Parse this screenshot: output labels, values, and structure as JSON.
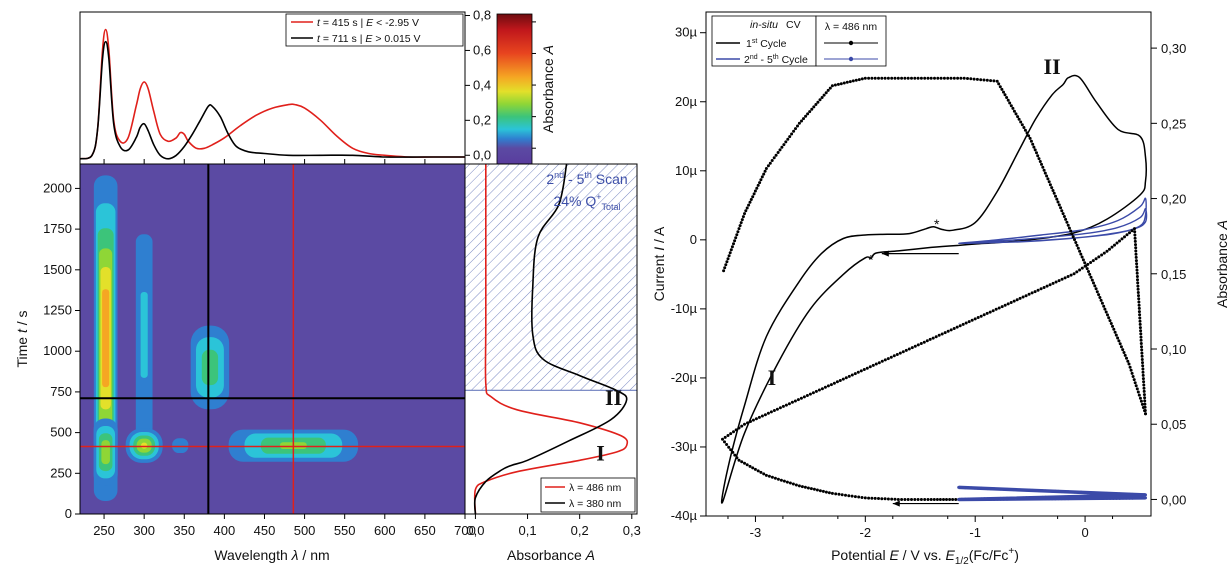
{
  "colors": {
    "red": "#e0201b",
    "black": "#000000",
    "blue": "#3b4aa8",
    "map_background": "#5b4aa3",
    "hatch": "#5a6db5"
  },
  "chart_data": [
    {
      "id": "top_spectra",
      "type": "line",
      "ylim": [
        -0.05,
        0.82
      ],
      "yticks": [
        "0,0",
        "0,2",
        "0,4",
        "0,6",
        "0,8"
      ],
      "legend": {
        "placement": "top-right",
        "entries": [
          {
            "color": "red",
            "t": "415",
            "E": "< -2.95 V"
          },
          {
            "color": "black",
            "t": "711",
            "E": "> 0.015 V"
          }
        ]
      },
      "series": [
        {
          "name_prefix": "t = 415 s | E < -2.95 V",
          "color": "red",
          "x": [
            220,
            235,
            242,
            248,
            252,
            256,
            262,
            270,
            280,
            290,
            295,
            300,
            305,
            312,
            320,
            330,
            340,
            345,
            350,
            355,
            365,
            375,
            385,
            400,
            420,
            440,
            460,
            480,
            488,
            500,
            520,
            540,
            560,
            580,
            600,
            630,
            660,
            700
          ],
          "y": [
            -0.02,
            0.0,
            0.15,
            0.6,
            0.72,
            0.6,
            0.2,
            0.08,
            0.1,
            0.28,
            0.38,
            0.42,
            0.38,
            0.25,
            0.12,
            0.08,
            0.1,
            0.13,
            0.12,
            0.08,
            0.04,
            0.04,
            0.06,
            0.1,
            0.17,
            0.23,
            0.27,
            0.29,
            0.29,
            0.27,
            0.2,
            0.11,
            0.04,
            0.01,
            0.0,
            -0.01,
            -0.01,
            -0.01
          ]
        },
        {
          "name_prefix": "t = 711 s | E > 0.015 V",
          "color": "black",
          "x": [
            220,
            235,
            242,
            248,
            252,
            256,
            262,
            270,
            280,
            290,
            295,
            300,
            305,
            312,
            320,
            330,
            340,
            350,
            360,
            370,
            380,
            385,
            395,
            405,
            415,
            430,
            450,
            480,
            520,
            560,
            600,
            650,
            700
          ],
          "y": [
            -0.02,
            0.0,
            0.15,
            0.55,
            0.65,
            0.55,
            0.18,
            0.05,
            0.03,
            0.1,
            0.16,
            0.18,
            0.14,
            0.06,
            0.0,
            -0.02,
            0.0,
            0.05,
            0.12,
            0.2,
            0.28,
            0.28,
            0.22,
            0.12,
            0.05,
            0.02,
            0.01,
            0.0,
            0.0,
            0.0,
            -0.01,
            -0.01,
            -0.01
          ]
        }
      ]
    },
    {
      "id": "colorbar",
      "type": "heatmap",
      "label": "Absorbance A",
      "range": [
        -0.1,
        0.85
      ],
      "ticks": [
        "0,0",
        "0,2",
        "0,4",
        "0,6",
        "0,8"
      ],
      "tick_values": [
        0.0,
        0.2,
        0.4,
        0.6,
        0.8
      ],
      "stops": [
        {
          "v": -0.1,
          "c": "#5a3d9e"
        },
        {
          "v": 0.0,
          "c": "#5b4aa3"
        },
        {
          "v": 0.06,
          "c": "#2f7fd0"
        },
        {
          "v": 0.12,
          "c": "#2bc4d8"
        },
        {
          "v": 0.2,
          "c": "#3cc47a"
        },
        {
          "v": 0.28,
          "c": "#8fd636"
        },
        {
          "v": 0.36,
          "c": "#e3e02a"
        },
        {
          "v": 0.45,
          "c": "#f5a623"
        },
        {
          "v": 0.6,
          "c": "#e8451f"
        },
        {
          "v": 0.75,
          "c": "#c0171c"
        },
        {
          "v": 0.85,
          "c": "#6e0c10"
        }
      ]
    },
    {
      "id": "heatmap",
      "type": "heatmap",
      "xlabel": "Wavelength λ / nm",
      "ylabel": "Time t / s",
      "xlim": [
        220,
        700
      ],
      "ylim": [
        0,
        2150
      ],
      "xticks": [
        250,
        300,
        350,
        400,
        450,
        500,
        550,
        600,
        650,
        700
      ],
      "yticks": [
        0,
        250,
        500,
        750,
        1000,
        1250,
        1500,
        1750,
        2000
      ],
      "cursor_lines": [
        {
          "axis": "x",
          "value": 486,
          "color": "red"
        },
        {
          "axis": "y",
          "value": 415,
          "color": "red"
        },
        {
          "axis": "x",
          "value": 380,
          "color": "black"
        },
        {
          "axis": "y",
          "value": 711,
          "color": "black"
        }
      ],
      "blobs": [
        {
          "x": 252,
          "y": 1080,
          "wx": 7,
          "wy": 950,
          "amp": 0.55
        },
        {
          "x": 252,
          "y": 380,
          "wx": 8,
          "wy": 220,
          "amp": 0.35
        },
        {
          "x": 300,
          "y": 1100,
          "wx": 8,
          "wy": 950,
          "amp": 0.14
        },
        {
          "x": 300,
          "y": 420,
          "wx": 12,
          "wy": 110,
          "amp": 0.38
        },
        {
          "x": 345,
          "y": 420,
          "wx": 10,
          "wy": 90,
          "amp": 0.1
        },
        {
          "x": 335,
          "y": 800,
          "wx": 25,
          "wy": 200,
          "amp": 0.06
        },
        {
          "x": 382,
          "y": 900,
          "wx": 14,
          "wy": 300,
          "amp": 0.26
        },
        {
          "x": 382,
          "y": 1400,
          "wx": 12,
          "wy": 400,
          "amp": 0.05
        },
        {
          "x": 486,
          "y": 420,
          "wx": 45,
          "wy": 110,
          "amp": 0.3
        }
      ]
    },
    {
      "id": "side_profile",
      "type": "line",
      "xlabel": "Absorbance A",
      "xlim": [
        -0.02,
        0.31
      ],
      "xticks": [
        "0,0",
        "0,1",
        "0,2",
        "0,3"
      ],
      "xtick_values": [
        0.0,
        0.1,
        0.2,
        0.3
      ],
      "ylim": [
        0,
        2150
      ],
      "shaded_region": {
        "from": 760,
        "to": 2150,
        "label1": "2nd - 5th Scan",
        "label2": "24% Q+Total"
      },
      "annotations": [
        {
          "text": "II",
          "x": 0.265,
          "y": 670
        },
        {
          "text": "I",
          "x": 0.24,
          "y": 330
        }
      ],
      "legend": {
        "placement": "bottom-right",
        "entries": [
          {
            "color": "red",
            "label": "λ = 486 nm"
          },
          {
            "color": "black",
            "label": "λ = 380 nm"
          }
        ]
      },
      "series": [
        {
          "name": "λ = 486 nm",
          "color": "red",
          "x": [
            0.0,
            0.0,
            0.02,
            0.08,
            0.2,
            0.27,
            0.29,
            0.28,
            0.2,
            0.08,
            0.03,
            0.02,
            0.02,
            0.02
          ],
          "y": [
            0,
            150,
            200,
            260,
            330,
            380,
            420,
            480,
            560,
            640,
            720,
            800,
            1200,
            2150
          ]
        },
        {
          "name": "λ = 380 nm",
          "color": "black",
          "x": [
            0.0,
            0.0,
            0.02,
            0.05,
            0.07,
            0.1,
            0.18,
            0.26,
            0.29,
            0.27,
            0.2,
            0.13,
            0.11,
            0.11,
            0.12,
            0.16,
            0.175
          ],
          "y": [
            0,
            100,
            200,
            270,
            300,
            330,
            450,
            580,
            700,
            760,
            850,
            950,
            1100,
            1400,
            1700,
            1900,
            2150
          ]
        }
      ]
    },
    {
      "id": "cv_plot",
      "type": "line",
      "xlabel": "Potential E / V vs. E1/2(Fc/Fc+)",
      "ylabel_left": "Current I / A",
      "ylabel_right": "Absorbance A",
      "xlim": [
        -3.45,
        0.6
      ],
      "xticks": [
        "-3",
        "-2",
        "-1",
        "0"
      ],
      "xtick_values": [
        -3,
        -2,
        -1,
        0
      ],
      "ylim_left": [
        -40,
        33
      ],
      "yticks_left": [
        "30µ",
        "20µ",
        "10µ",
        "0",
        "-10µ",
        "-20µ",
        "-30µ",
        "-40µ"
      ],
      "ytick_values_left": [
        30,
        20,
        10,
        0,
        -10,
        -20,
        -30,
        -40
      ],
      "ylim_right": [
        -0.011,
        0.324
      ],
      "yticks_right": [
        "0,30",
        "0,25",
        "0,20",
        "0,15",
        "0,10",
        "0,05",
        "0,00"
      ],
      "ytick_values_right": [
        0.3,
        0.25,
        0.2,
        0.15,
        0.1,
        0.05,
        0.0
      ],
      "legend": {
        "placement": "top-left",
        "title": "in-situ CV",
        "entries": [
          {
            "color": "black",
            "label": "1st Cycle"
          },
          {
            "color": "blue",
            "label": "2nd - 5th Cycle"
          }
        ],
        "lambda_label": "λ = 486 nm"
      },
      "annotations": [
        {
          "text": "I",
          "x": -2.85,
          "y": -21
        },
        {
          "text": "II",
          "x": -0.3,
          "y": 24
        },
        {
          "text": "*",
          "x": -1.35,
          "y": 1.6
        },
        {
          "text": "*",
          "x": -1.95,
          "y": -3.6
        }
      ],
      "series": [
        {
          "name": "1st Cycle",
          "color": "black",
          "x": [
            -1.15,
            -1.4,
            -1.7,
            -1.9,
            -1.95,
            -2.0,
            -2.2,
            -2.5,
            -2.8,
            -3.1,
            -3.3,
            -3.25,
            -3.1,
            -2.9,
            -2.6,
            -2.4,
            -2.2,
            -2.0,
            -1.8,
            -1.6,
            -1.45,
            -1.38,
            -1.3,
            -1.2,
            -1.0,
            -0.8,
            -0.6,
            -0.45,
            -0.3,
            -0.2,
            -0.15,
            -0.05,
            0.1,
            0.3,
            0.5,
            0.55,
            0.55,
            0.5,
            0.2,
            -0.1,
            -0.5,
            -0.8,
            -1.0,
            -1.15
          ],
          "y": [
            -0.8,
            -1.1,
            -1.6,
            -1.9,
            -2.7,
            -2.6,
            -5.0,
            -10.0,
            -18.0,
            -28.0,
            -38.0,
            -33.0,
            -24.0,
            -14.0,
            -6.0,
            -2.0,
            0.2,
            0.7,
            0.8,
            0.9,
            1.6,
            1.9,
            1.5,
            1.4,
            2.5,
            7.0,
            13.0,
            17.5,
            21.0,
            22.5,
            23.5,
            23.5,
            20.0,
            16.0,
            15.0,
            12.0,
            8.5,
            6.5,
            3.0,
            1.0,
            0.0,
            -0.4,
            -0.6,
            -0.8
          ]
        },
        {
          "name": "1st Cycle arrow",
          "color": "black",
          "x": [
            -1.15,
            -1.85
          ],
          "y": [
            -2.0,
            -2.0
          ]
        },
        {
          "name": "1st Cycle arrow bottom",
          "color": "black",
          "x": [
            -1.15,
            -1.75
          ],
          "y": [
            -38.2,
            -38.2
          ]
        },
        {
          "name": "2nd - 5th Cycle",
          "color": "blue",
          "x": [
            -1.15,
            -0.8,
            -0.4,
            0.0,
            0.3,
            0.5,
            0.55,
            0.55,
            0.5,
            0.3,
            0.0,
            -0.4,
            -0.8,
            -1.15,
            -0.8,
            -0.4,
            0.0,
            0.3,
            0.5,
            0.55,
            0.55,
            0.45,
            0.2,
            -0.2,
            -0.6,
            -1.15
          ],
          "y": [
            -0.5,
            0.0,
            0.7,
            1.5,
            2.8,
            4.8,
            6.0,
            3.6,
            2.0,
            1.0,
            0.4,
            -0.1,
            -0.4,
            -0.5,
            -0.2,
            0.3,
            0.9,
            1.8,
            3.2,
            4.5,
            2.6,
            1.6,
            0.8,
            0.1,
            -0.3,
            -0.5
          ]
        },
        {
          "name": "λ = 486 nm",
          "color": "black",
          "axis": "right",
          "x": [
            -1.15,
            -1.4,
            -1.7,
            -2.0,
            -2.3,
            -2.6,
            -2.9,
            -3.15,
            -3.3,
            -3.1,
            -2.8,
            -2.5,
            -2.2,
            -1.9,
            -1.6,
            -1.3,
            -1.0,
            -0.7,
            -0.4,
            -0.1,
            0.2,
            0.45,
            0.55,
            0.55,
            0.4,
            0.1,
            -0.2,
            -0.5,
            -0.8,
            -1.1,
            -1.4,
            -1.7,
            -2.0,
            -2.3,
            -2.6,
            -2.9,
            -3.1,
            -3.3
          ],
          "y": [
            0.0,
            0.0,
            0.0,
            0.001,
            0.004,
            0.009,
            0.016,
            0.026,
            0.04,
            0.05,
            0.06,
            0.07,
            0.08,
            0.09,
            0.1,
            0.11,
            0.12,
            0.13,
            0.14,
            0.15,
            0.165,
            0.18,
            0.057,
            0.057,
            0.09,
            0.14,
            0.19,
            0.24,
            0.278,
            0.28,
            0.28,
            0.28,
            0.28,
            0.275,
            0.25,
            0.22,
            0.19,
            0.15
          ]
        },
        {
          "name": "λ = 486 nm blue",
          "color": "blue",
          "axis": "right",
          "x": [
            -1.15,
            0.55,
            -1.15,
            0.55,
            -1.15
          ],
          "y": [
            0.008,
            0.003,
            0.0,
            0.001,
            0.0
          ]
        }
      ]
    }
  ]
}
